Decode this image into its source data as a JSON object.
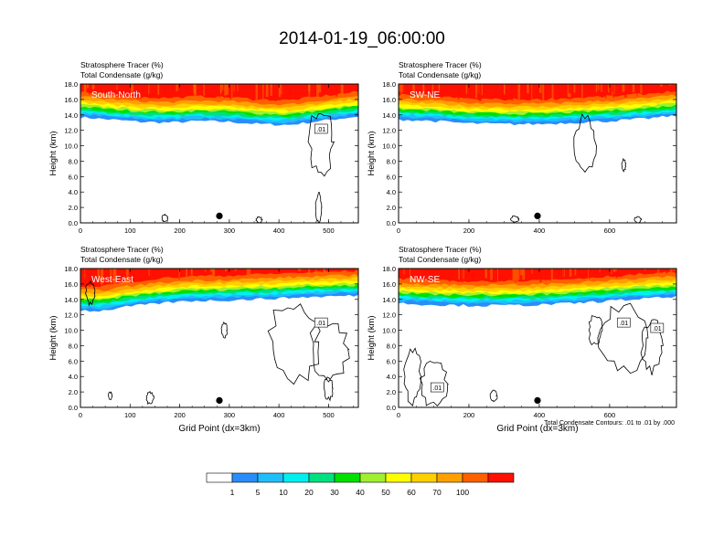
{
  "title": "2014-01-19_06:00:00",
  "colors": {
    "levels": [
      "#ffffff",
      "#2a8dfa",
      "#1fbefa",
      "#00f0f0",
      "#00e080",
      "#00e000",
      "#a0f030",
      "#ffff00",
      "#ffd000",
      "#ffa000",
      "#ff6000",
      "#ff1000"
    ],
    "contour": "#000000"
  },
  "chart_data": [
    {
      "type": "heatmap",
      "panel": "South-North",
      "subtitle_lines": [
        "Stratosphere Tracer   (%)",
        "Total Condensate   (g/kg)"
      ],
      "ylabel": "Height (km)",
      "xlabel": "",
      "xlim": [
        0,
        560
      ],
      "ylim": [
        0,
        18
      ],
      "xticks": [
        "0",
        "100",
        "200",
        "300",
        "400",
        "500"
      ],
      "xtick_values": [
        0,
        100,
        200,
        300,
        400,
        500
      ],
      "yticks": [
        "0.0",
        "2.0",
        "4.0",
        "6.0",
        "8.0",
        "10.0",
        "12.0",
        "14.0",
        "16.0",
        "18.0"
      ],
      "marker_x": 280,
      "contour_label": ".01",
      "contour_label_xy": [
        485,
        12.2
      ],
      "tropopause": [
        [
          0,
          14.6
        ],
        [
          60,
          14.3
        ],
        [
          120,
          14.0
        ],
        [
          180,
          13.9
        ],
        [
          240,
          14.1
        ],
        [
          300,
          14.0
        ],
        [
          360,
          13.7
        ],
        [
          420,
          13.6
        ],
        [
          470,
          14.0
        ],
        [
          520,
          14.4
        ],
        [
          560,
          14.7
        ]
      ]
    },
    {
      "type": "heatmap",
      "panel": "SW-NE",
      "subtitle_lines": [
        "Stratosphere Tracer   (%)",
        "Total Condensate   (g/kg)"
      ],
      "ylabel": "Height (km)",
      "xlabel": "",
      "xlim": [
        0,
        790
      ],
      "ylim": [
        0,
        18
      ],
      "xticks": [
        "0",
        "200",
        "400",
        "600"
      ],
      "xtick_values": [
        0,
        200,
        400,
        600
      ],
      "yticks": [
        "0.0",
        "2.0",
        "4.0",
        "6.0",
        "8.0",
        "10.0",
        "12.0",
        "14.0",
        "16.0",
        "18.0"
      ],
      "marker_x": 395,
      "contour_label": "",
      "contour_label_xy": [
        0,
        0
      ],
      "tropopause": [
        [
          0,
          14.3
        ],
        [
          100,
          14.1
        ],
        [
          200,
          13.8
        ],
        [
          300,
          13.7
        ],
        [
          400,
          13.7
        ],
        [
          500,
          13.9
        ],
        [
          600,
          14.1
        ],
        [
          700,
          14.4
        ],
        [
          790,
          14.8
        ]
      ]
    },
    {
      "type": "heatmap",
      "panel": "West-East",
      "subtitle_lines": [
        "Stratosphere Tracer   (%)",
        "Total Condensate   (g/kg)"
      ],
      "ylabel": "Height (km)",
      "xlabel": "Grid Point (dx=3km)",
      "xlim": [
        0,
        560
      ],
      "ylim": [
        0,
        18
      ],
      "xticks": [
        "0",
        "100",
        "200",
        "300",
        "400",
        "500"
      ],
      "xtick_values": [
        0,
        100,
        200,
        300,
        400,
        500
      ],
      "yticks": [
        "0.0",
        "2.0",
        "4.0",
        "6.0",
        "8.0",
        "10.0",
        "12.0",
        "14.0",
        "16.0",
        "18.0"
      ],
      "marker_x": 280,
      "contour_label": ".01",
      "contour_label_xy": [
        485,
        11.0
      ],
      "tropopause": [
        [
          0,
          13.5
        ],
        [
          40,
          13.4
        ],
        [
          100,
          14.0
        ],
        [
          160,
          14.4
        ],
        [
          220,
          14.7
        ],
        [
          300,
          14.8
        ],
        [
          380,
          15.0
        ],
        [
          460,
          15.2
        ],
        [
          560,
          15.4
        ]
      ]
    },
    {
      "type": "heatmap",
      "panel": "NW-SE",
      "subtitle_lines": [
        "Stratosphere Tracer   (%)",
        "Total Condensate   (g/kg)"
      ],
      "ylabel": "Height (km)",
      "xlabel": "Grid Point (dx=3km)",
      "footnote": "Total Condensate Contours: .01 to .01 by .000",
      "xlim": [
        0,
        790
      ],
      "ylim": [
        0,
        18
      ],
      "xticks": [
        "0",
        "200",
        "400",
        "600"
      ],
      "xtick_values": [
        0,
        200,
        400,
        600
      ],
      "yticks": [
        "0.0",
        "2.0",
        "4.0",
        "6.0",
        "8.0",
        "10.0",
        "12.0",
        "14.0",
        "16.0",
        "18.0"
      ],
      "marker_x": 395,
      "contour_label": ".01",
      "contour_label_xy": [
        640,
        11.0
      ],
      "contour_label2": ".01",
      "contour_label2_xy": [
        735,
        10.3
      ],
      "contour_label3": ".01",
      "contour_label3_xy": [
        110,
        2.6
      ],
      "tropopause": [
        [
          0,
          14.4
        ],
        [
          100,
          14.2
        ],
        [
          200,
          14.1
        ],
        [
          300,
          14.1
        ],
        [
          400,
          14.2
        ],
        [
          500,
          14.4
        ],
        [
          600,
          14.7
        ],
        [
          700,
          15.0
        ],
        [
          790,
          15.2
        ]
      ]
    }
  ],
  "colorbar": {
    "labels": [
      "1",
      "5",
      "10",
      "20",
      "30",
      "40",
      "50",
      "60",
      "70",
      "100"
    ]
  }
}
